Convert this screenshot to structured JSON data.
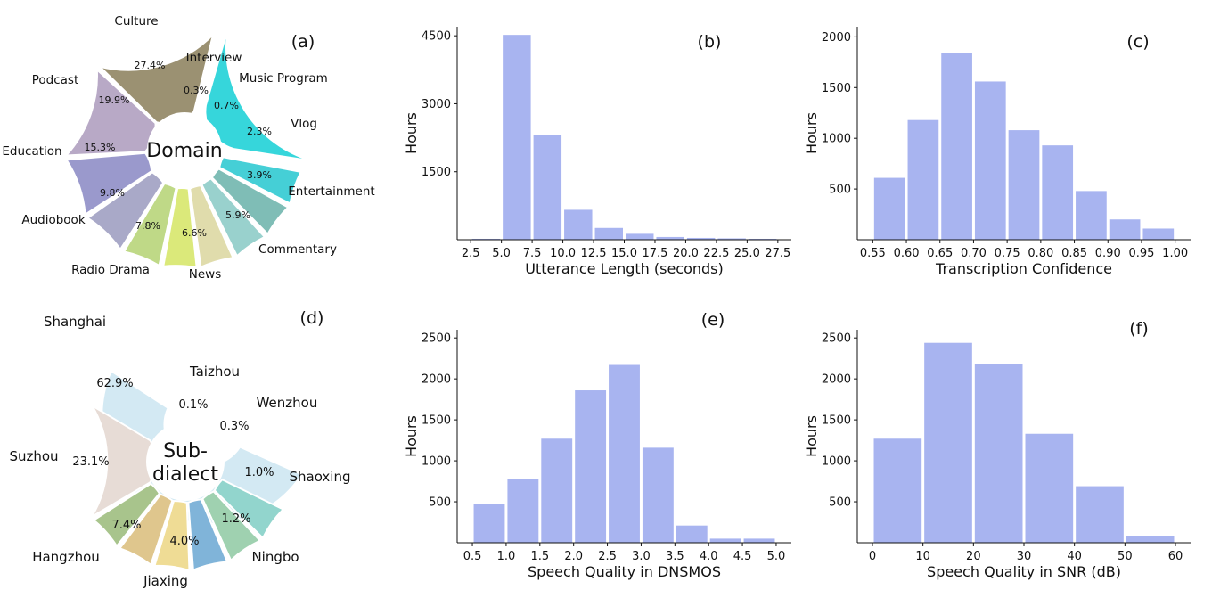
{
  "chart_data": [
    {
      "panel": "(a)",
      "type": "pie",
      "center_label": "Domain",
      "categories": [
        "Culture",
        "Interview",
        "Music Program",
        "Vlog",
        "Entertainment",
        "Commentary",
        "News",
        "Radio Drama",
        "Audiobook",
        "Education",
        "Podcast"
      ],
      "values": [
        27.4,
        0.3,
        0.7,
        2.3,
        3.9,
        5.9,
        6.6,
        7.8,
        9.8,
        15.3,
        19.9
      ],
      "value_labels": [
        "27.4%",
        "0.3%",
        "0.7%",
        "2.3%",
        "3.9%",
        "5.9%",
        "6.6%",
        "7.8%",
        "9.8%",
        "15.3%",
        "19.9%"
      ],
      "colors": [
        "#36d6db",
        "#45cfd6",
        "#7fbdb6",
        "#99d1cd",
        "#e0dcac",
        "#dbe97a",
        "#bfd987",
        "#a9a9c8",
        "#9a99cc",
        "#b8a9c6",
        "#9b9172"
      ]
    },
    {
      "panel": "(b)",
      "type": "bar",
      "xlabel": "Utterance Length (seconds)",
      "ylabel": "Hours",
      "x_ticks": [
        "2.5",
        "5.0",
        "7.5",
        "10.0",
        "12.5",
        "15.0",
        "17.5",
        "20.0",
        "22.5",
        "25.0",
        "27.5"
      ],
      "y_ticks": [
        "1500",
        "3000",
        "4500"
      ],
      "bins": [
        [
          2.5,
          5.0
        ],
        [
          5.0,
          7.5
        ],
        [
          7.5,
          10.0
        ],
        [
          10.0,
          12.5
        ],
        [
          12.5,
          15.0
        ],
        [
          15.0,
          17.5
        ],
        [
          17.5,
          20.0
        ],
        [
          20.0,
          22.5
        ],
        [
          22.5,
          25.0
        ],
        [
          25.0,
          27.5
        ]
      ],
      "values": [
        20,
        4520,
        2320,
        660,
        260,
        130,
        60,
        40,
        30,
        20
      ],
      "xlim": [
        1.4,
        28.6
      ],
      "ylim": [
        0,
        4700
      ],
      "color": "#a8b4f0"
    },
    {
      "panel": "(c)",
      "type": "bar",
      "xlabel": "Transcription Confidence",
      "ylabel": "Hours",
      "x_ticks": [
        "0.55",
        "0.60",
        "0.65",
        "0.70",
        "0.75",
        "0.80",
        "0.85",
        "0.90",
        "0.95",
        "1.00"
      ],
      "y_ticks": [
        "500",
        "1000",
        "1500",
        "2000"
      ],
      "bins": [
        [
          0.55,
          0.6
        ],
        [
          0.6,
          0.65
        ],
        [
          0.65,
          0.7
        ],
        [
          0.7,
          0.75
        ],
        [
          0.75,
          0.8
        ],
        [
          0.8,
          0.85
        ],
        [
          0.85,
          0.9
        ],
        [
          0.9,
          0.95
        ],
        [
          0.95,
          1.0
        ]
      ],
      "values": [
        610,
        1180,
        1840,
        1560,
        1080,
        930,
        480,
        200,
        110
      ],
      "xlim": [
        0.527,
        1.023
      ],
      "ylim": [
        0,
        2100
      ],
      "color": "#a8b4f0"
    },
    {
      "panel": "(e)",
      "type": "bar",
      "xlabel": "Speech Quality in DNSMOS",
      "ylabel": "Hours",
      "x_ticks": [
        "0.5",
        "1.0",
        "1.5",
        "2.0",
        "2.5",
        "3.0",
        "3.5",
        "4.0",
        "4.5",
        "5.0"
      ],
      "y_ticks": [
        "500",
        "1000",
        "1500",
        "2000",
        "2500"
      ],
      "bins": [
        [
          0.5,
          1.0
        ],
        [
          1.0,
          1.5
        ],
        [
          1.5,
          2.0
        ],
        [
          2.0,
          2.5
        ],
        [
          2.5,
          3.0
        ],
        [
          3.0,
          3.5
        ],
        [
          3.5,
          4.0
        ],
        [
          4.0,
          4.5
        ],
        [
          4.5,
          5.0
        ]
      ],
      "values": [
        470,
        780,
        1270,
        1860,
        2170,
        1160,
        210,
        50,
        50
      ],
      "xlim": [
        0.275,
        5.225
      ],
      "ylim": [
        0,
        2600
      ],
      "color": "#a8b4f0"
    },
    {
      "panel": "(f)",
      "type": "bar",
      "xlabel": "Speech Quality in SNR (dB)",
      "ylabel": "Hours",
      "x_ticks": [
        "0",
        "10",
        "20",
        "30",
        "40",
        "50",
        "60"
      ],
      "y_ticks": [
        "500",
        "1000",
        "1500",
        "2000",
        "2500"
      ],
      "bins": [
        [
          0,
          10
        ],
        [
          10,
          20
        ],
        [
          20,
          30
        ],
        [
          30,
          40
        ],
        [
          40,
          50
        ],
        [
          50,
          60
        ]
      ],
      "values": [
        1270,
        2440,
        2180,
        1330,
        690,
        80
      ],
      "xlim": [
        -3,
        63
      ],
      "ylim": [
        0,
        2600
      ],
      "color": "#a8b4f0"
    },
    {
      "panel": "(d)",
      "type": "pie",
      "center_label": "Sub-\ndialect",
      "categories": [
        "Shanghai",
        "Taizhou",
        "Wenzhou",
        "Shaoxing",
        "Ningbo",
        "Jiaxing",
        "Hangzhou",
        "Suzhou"
      ],
      "values": [
        62.9,
        0.1,
        0.3,
        1.0,
        1.2,
        4.0,
        7.4,
        23.1
      ],
      "value_labels": [
        "62.9%",
        "0.1%",
        "0.3%",
        "1.0%",
        "1.2%",
        "4.0%",
        "7.4%",
        "23.1%"
      ],
      "colors": [
        "#d3e9f3",
        "#92d5cd",
        "#9fd1b0",
        "#80b4d9",
        "#efdc95",
        "#dfc68d",
        "#a8c48c",
        "#e7dcd6"
      ]
    }
  ]
}
